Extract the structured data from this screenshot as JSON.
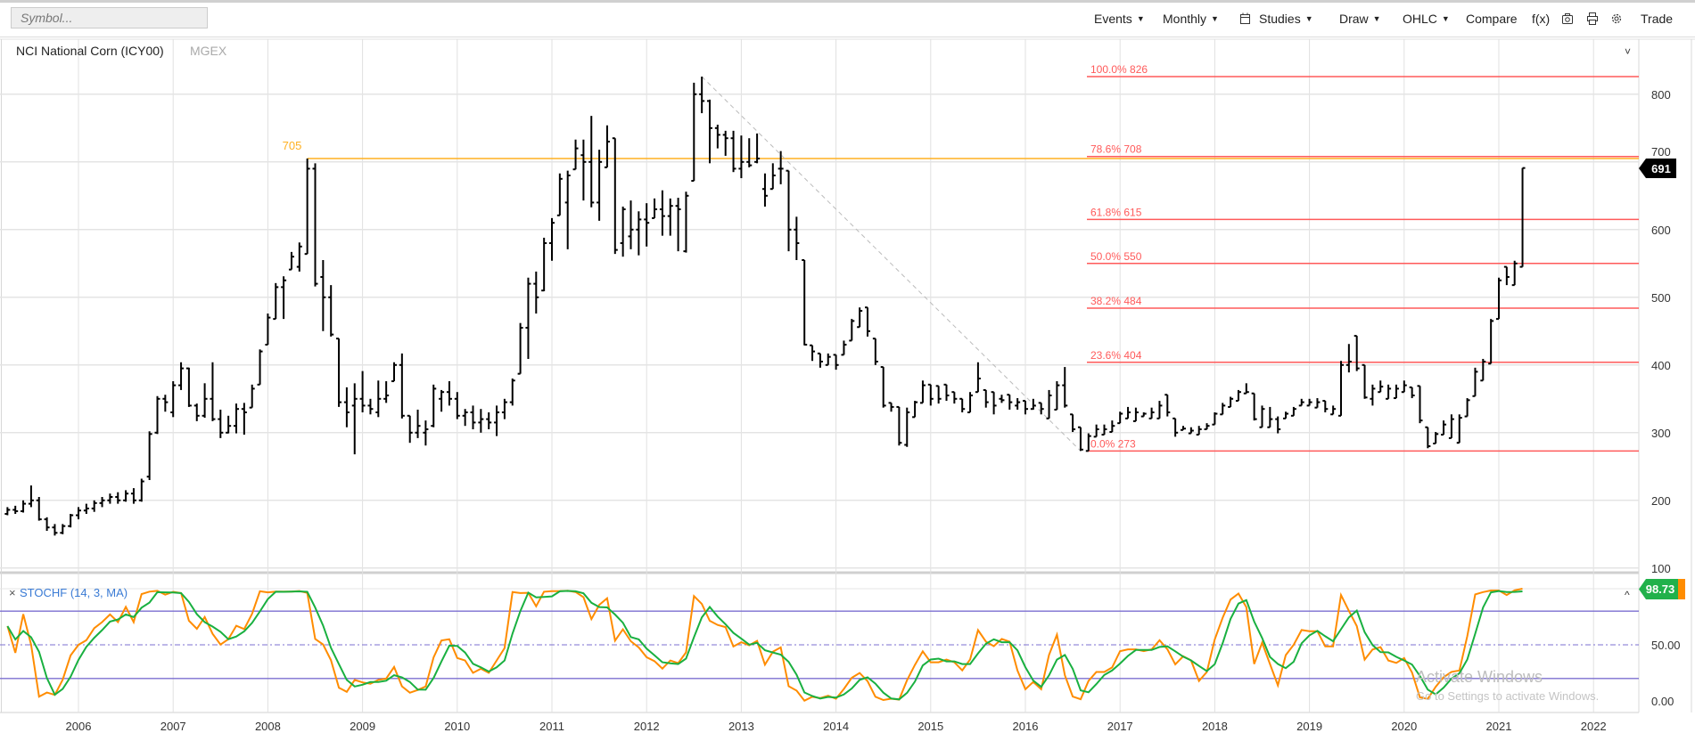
{
  "toolbar": {
    "symbol_placeholder": "Symbol...",
    "items": [
      {
        "label": "Events",
        "dropdown": true
      },
      {
        "label": "Monthly",
        "dropdown": true
      },
      {
        "label": "",
        "icon": "calendar-icon"
      },
      {
        "label": "Studies",
        "dropdown": true
      },
      {
        "label": "Draw",
        "dropdown": true
      },
      {
        "label": "OHLC",
        "dropdown": true
      },
      {
        "label": "Compare"
      },
      {
        "label": "f(x)"
      },
      {
        "label": "",
        "icon": "camera-icon"
      },
      {
        "label": "",
        "icon": "print-icon"
      },
      {
        "label": "",
        "icon": "gear-icon"
      },
      {
        "label": "Trade"
      }
    ]
  },
  "chart_header": {
    "title": "NCI National Corn (ICY00)",
    "exchange": "MGEX"
  },
  "study": {
    "label": "STOCHF (14, 3, MA)",
    "close_symbol": "×",
    "last_value": "98.73"
  },
  "last_price": "691",
  "os_watermark": {
    "line1": "Activate Windows",
    "line2": "Go to Settings to activate Windows."
  },
  "colors": {
    "bars": "#000000",
    "fib": "#ff5a5a",
    "horizontal_line": "#ffb020",
    "stoch_k": "#ff8c00",
    "stoch_d": "#19b040",
    "stoch_bands": "#7b6fd0",
    "price_badge": "#000000",
    "study_badge": "#21b14b",
    "study_label": "#3a7bd5"
  },
  "chart_data": {
    "type": "ohlc",
    "interval": "monthly",
    "start_month": "2005-04",
    "end_month": "2021-04",
    "x_tick_labels": [
      "2006",
      "2007",
      "2008",
      "2009",
      "2010",
      "2011",
      "2012",
      "2013",
      "2014",
      "2015",
      "2016",
      "2017",
      "2018",
      "2019",
      "2020",
      "2021",
      "2022"
    ],
    "y_tick_labels": [
      "100",
      "200",
      "300",
      "400",
      "500",
      "600",
      "700",
      "800"
    ],
    "ylim": [
      100,
      850
    ],
    "grid": true,
    "ohlc": [
      [
        180,
        190,
        178,
        186
      ],
      [
        186,
        192,
        180,
        184
      ],
      [
        184,
        200,
        182,
        195
      ],
      [
        195,
        222,
        190,
        200
      ],
      [
        200,
        205,
        170,
        172
      ],
      [
        172,
        175,
        155,
        160
      ],
      [
        160,
        165,
        148,
        152
      ],
      [
        152,
        165,
        150,
        162
      ],
      [
        162,
        180,
        160,
        178
      ],
      [
        178,
        190,
        172,
        185
      ],
      [
        185,
        195,
        180,
        188
      ],
      [
        188,
        200,
        183,
        196
      ],
      [
        196,
        205,
        190,
        200
      ],
      [
        200,
        210,
        195,
        205
      ],
      [
        205,
        212,
        195,
        200
      ],
      [
        200,
        215,
        198,
        210
      ],
      [
        210,
        218,
        195,
        200
      ],
      [
        200,
        232,
        198,
        228
      ],
      [
        235,
        302,
        230,
        298
      ],
      [
        300,
        354,
        298,
        350
      ],
      [
        350,
        356,
        331,
        345
      ],
      [
        330,
        376,
        323,
        370
      ],
      [
        370,
        404,
        363,
        395
      ],
      [
        395,
        396,
        338,
        340
      ],
      [
        340,
        343,
        317,
        325
      ],
      [
        325,
        373,
        322,
        350
      ],
      [
        350,
        404,
        317,
        320
      ],
      [
        320,
        334,
        292,
        300
      ],
      [
        300,
        325,
        299,
        310
      ],
      [
        310,
        343,
        299,
        335
      ],
      [
        335,
        344,
        297,
        330
      ],
      [
        337,
        371,
        337,
        365
      ],
      [
        371,
        423,
        371,
        420
      ],
      [
        430,
        476,
        430,
        470
      ],
      [
        468,
        521,
        468,
        515
      ],
      [
        515,
        531,
        468,
        525
      ],
      [
        541,
        567,
        541,
        560
      ],
      [
        545,
        581,
        538,
        575
      ],
      [
        564,
        705,
        564,
        690
      ],
      [
        690,
        698,
        516,
        520
      ],
      [
        530,
        555,
        450,
        500
      ],
      [
        500,
        518,
        442,
        445
      ],
      [
        439,
        439,
        338,
        345
      ],
      [
        345,
        367,
        308,
        330
      ],
      [
        340,
        373,
        268,
        350
      ],
      [
        350,
        391,
        330,
        340
      ],
      [
        340,
        350,
        327,
        335
      ],
      [
        330,
        377,
        323,
        350
      ],
      [
        350,
        376,
        344,
        355
      ],
      [
        376,
        404,
        376,
        400
      ],
      [
        400,
        417,
        321,
        325
      ],
      [
        325,
        325,
        285,
        300
      ],
      [
        300,
        334,
        292,
        310
      ],
      [
        300,
        318,
        281,
        305
      ],
      [
        310,
        371,
        308,
        365
      ],
      [
        350,
        363,
        331,
        360
      ],
      [
        360,
        376,
        340,
        350
      ],
      [
        350,
        360,
        320,
        325
      ],
      [
        325,
        335,
        310,
        330
      ],
      [
        330,
        340,
        305,
        315
      ],
      [
        315,
        335,
        300,
        320
      ],
      [
        320,
        330,
        305,
        315
      ],
      [
        315,
        340,
        295,
        330
      ],
      [
        330,
        350,
        320,
        345
      ],
      [
        345,
        380,
        340,
        377
      ],
      [
        387,
        462,
        387,
        455
      ],
      [
        455,
        529,
        409,
        520
      ],
      [
        520,
        538,
        476,
        500
      ],
      [
        510,
        588,
        509,
        580
      ],
      [
        580,
        617,
        554,
        610
      ],
      [
        621,
        683,
        621,
        675
      ],
      [
        640,
        687,
        571,
        680
      ],
      [
        689,
        733,
        689,
        720
      ],
      [
        710,
        733,
        643,
        700
      ],
      [
        700,
        768,
        633,
        640
      ],
      [
        640,
        718,
        613,
        700
      ],
      [
        692,
        754,
        692,
        730
      ],
      [
        735,
        735,
        564,
        570
      ],
      [
        580,
        634,
        560,
        630
      ],
      [
        590,
        643,
        571,
        600
      ],
      [
        600,
        627,
        562,
        615
      ],
      [
        615,
        639,
        575,
        610
      ],
      [
        617,
        646,
        617,
        630
      ],
      [
        630,
        658,
        591,
        620
      ],
      [
        620,
        646,
        591,
        635
      ],
      [
        635,
        647,
        568,
        630
      ],
      [
        568,
        656,
        566,
        650
      ],
      [
        672,
        817,
        672,
        800
      ],
      [
        800,
        826,
        772,
        790
      ],
      [
        790,
        792,
        698,
        750
      ],
      [
        750,
        755,
        720,
        740
      ],
      [
        740,
        746,
        709,
        735
      ],
      [
        735,
        746,
        685,
        690
      ],
      [
        690,
        739,
        676,
        700
      ],
      [
        700,
        735,
        692,
        695
      ],
      [
        700,
        742,
        698,
        705
      ],
      [
        660,
        683,
        634,
        650
      ],
      [
        660,
        698,
        660,
        680
      ],
      [
        690,
        716,
        667,
        690
      ],
      [
        687,
        687,
        568,
        600
      ],
      [
        600,
        619,
        555,
        580
      ],
      [
        555,
        555,
        429,
        430
      ],
      [
        429,
        429,
        406,
        420
      ],
      [
        417,
        417,
        396,
        405
      ],
      [
        400,
        417,
        400,
        412
      ],
      [
        415,
        415,
        393,
        400
      ],
      [
        415,
        436,
        415,
        430
      ],
      [
        436,
        468,
        436,
        465
      ],
      [
        456,
        485,
        456,
        480
      ],
      [
        485,
        485,
        442,
        450
      ],
      [
        439,
        439,
        400,
        405
      ],
      [
        397,
        397,
        337,
        340
      ],
      [
        344,
        344,
        331,
        338
      ],
      [
        338,
        338,
        281,
        285
      ],
      [
        282,
        337,
        279,
        330
      ],
      [
        323,
        347,
        323,
        345
      ],
      [
        344,
        377,
        344,
        370
      ],
      [
        371,
        371,
        340,
        350
      ],
      [
        369,
        369,
        343,
        350
      ],
      [
        371,
        371,
        347,
        355
      ],
      [
        360,
        360,
        343,
        350
      ],
      [
        350,
        350,
        330,
        335
      ],
      [
        330,
        360,
        330,
        355
      ],
      [
        360,
        404,
        360,
        380
      ],
      [
        363,
        363,
        337,
        345
      ],
      [
        360,
        360,
        327,
        340
      ],
      [
        350,
        356,
        344,
        348
      ],
      [
        356,
        356,
        334,
        345
      ],
      [
        340,
        351,
        334,
        345
      ],
      [
        347,
        347,
        327,
        335
      ],
      [
        335,
        350,
        334,
        340
      ],
      [
        344,
        344,
        327,
        335
      ],
      [
        321,
        363,
        321,
        355
      ],
      [
        334,
        376,
        334,
        370
      ],
      [
        370,
        397,
        337,
        340
      ],
      [
        327,
        327,
        301,
        305
      ],
      [
        308,
        308,
        273,
        275
      ],
      [
        273,
        299,
        273,
        295
      ],
      [
        294,
        312,
        294,
        305
      ],
      [
        297,
        312,
        297,
        305
      ],
      [
        301,
        318,
        301,
        310
      ],
      [
        314,
        331,
        314,
        328
      ],
      [
        321,
        338,
        321,
        330
      ],
      [
        317,
        337,
        317,
        330
      ],
      [
        324,
        330,
        324,
        328
      ],
      [
        321,
        337,
        321,
        330
      ],
      [
        321,
        347,
        321,
        340
      ],
      [
        356,
        356,
        324,
        330
      ],
      [
        321,
        321,
        294,
        300
      ],
      [
        304,
        310,
        304,
        306
      ],
      [
        299,
        308,
        299,
        303
      ],
      [
        297,
        310,
        297,
        305
      ],
      [
        305,
        314,
        305,
        310
      ],
      [
        312,
        330,
        312,
        328
      ],
      [
        327,
        344,
        327,
        340
      ],
      [
        338,
        353,
        338,
        350
      ],
      [
        347,
        363,
        347,
        360
      ],
      [
        358,
        373,
        358,
        360
      ],
      [
        358,
        358,
        318,
        320
      ],
      [
        308,
        340,
        308,
        335
      ],
      [
        308,
        338,
        308,
        320
      ],
      [
        320,
        324,
        299,
        305
      ],
      [
        321,
        331,
        321,
        328
      ],
      [
        325,
        338,
        325,
        335
      ],
      [
        340,
        350,
        340,
        345
      ],
      [
        340,
        350,
        340,
        345
      ],
      [
        337,
        351,
        337,
        345
      ],
      [
        347,
        347,
        330,
        335
      ],
      [
        327,
        340,
        327,
        335
      ],
      [
        325,
        406,
        325,
        400
      ],
      [
        400,
        431,
        389,
        405
      ],
      [
        443,
        443,
        391,
        395
      ],
      [
        400,
        400,
        350,
        352
      ],
      [
        350,
        371,
        340,
        365
      ],
      [
        360,
        377,
        360,
        368
      ],
      [
        350,
        371,
        350,
        365
      ],
      [
        351,
        371,
        351,
        365
      ],
      [
        360,
        377,
        360,
        370
      ],
      [
        367,
        367,
        351,
        355
      ],
      [
        369,
        369,
        314,
        318
      ],
      [
        308,
        308,
        277,
        280
      ],
      [
        284,
        301,
        284,
        298
      ],
      [
        297,
        318,
        297,
        312
      ],
      [
        292,
        327,
        292,
        320
      ],
      [
        285,
        327,
        285,
        322
      ],
      [
        324,
        351,
        324,
        348
      ],
      [
        354,
        396,
        354,
        390
      ],
      [
        377,
        409,
        377,
        405
      ],
      [
        402,
        468,
        402,
        465
      ],
      [
        468,
        529,
        468,
        525
      ],
      [
        545,
        545,
        518,
        530
      ],
      [
        518,
        554,
        518,
        550
      ],
      [
        545,
        691,
        545,
        691
      ]
    ],
    "horizontal_line": {
      "value": 705,
      "label": "705",
      "from_month": "2008-06"
    },
    "fibonacci": {
      "from": {
        "month": "2012-08",
        "value": 826
      },
      "to": {
        "month": "2016-08",
        "value": 273
      },
      "levels": [
        {
          "label": "100.0% 826",
          "value": 826
        },
        {
          "label": "78.6% 708",
          "value": 708
        },
        {
          "label": "61.8% 615",
          "value": 615
        },
        {
          "label": "50.0% 550",
          "value": 550
        },
        {
          "label": "38.2% 484",
          "value": 484
        },
        {
          "label": "23.6% 404",
          "value": 404
        },
        {
          "label": "0.0% 273",
          "value": 273
        }
      ]
    },
    "stochastic": {
      "type": "line",
      "k_period": 14,
      "d_period": 3,
      "ylim": [
        0,
        100
      ],
      "bands": [
        80,
        20
      ],
      "midline": 50,
      "y_tick_labels": [
        "50.00",
        "0.00"
      ]
    }
  }
}
